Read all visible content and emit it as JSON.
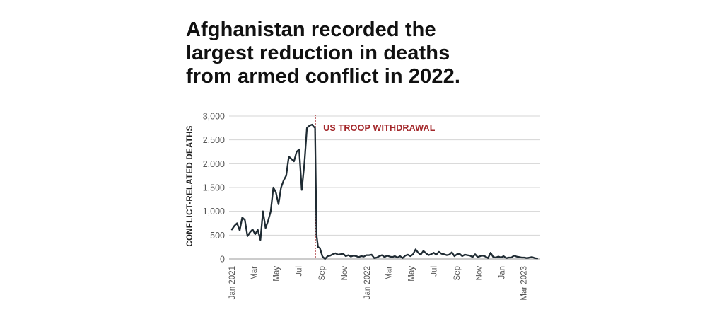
{
  "title_lines": [
    "Afghanistan recorded the",
    "largest reduction in deaths",
    "from armed conflict in 2022."
  ],
  "colors": {
    "line": "#1f2b33",
    "annotation": "#a3272a",
    "grid": "#d4d4d4",
    "text": "#111111"
  },
  "chart_data": {
    "type": "line",
    "title": "Afghanistan recorded the largest reduction in deaths from armed conflict in 2022.",
    "xlabel": "",
    "ylabel": "CONFLICT-RELATED DEATHS",
    "ylim": [
      0,
      3000
    ],
    "yticks": [
      0,
      500,
      1000,
      1500,
      2000,
      2500,
      3000
    ],
    "ytick_labels": [
      "0",
      "500",
      "1,000",
      "1,500",
      "2,000",
      "2,500",
      "3,000"
    ],
    "xlim": [
      "2021-01-01",
      "2023-04-15"
    ],
    "xticks": [
      {
        "date": "2021-01-01",
        "label": "Jan 2021"
      },
      {
        "date": "2021-03-01",
        "label": "Mar"
      },
      {
        "date": "2021-05-01",
        "label": "May"
      },
      {
        "date": "2021-07-01",
        "label": "Jul"
      },
      {
        "date": "2021-09-01",
        "label": "Sep"
      },
      {
        "date": "2021-11-01",
        "label": "Nov"
      },
      {
        "date": "2022-01-01",
        "label": "Jan 2022"
      },
      {
        "date": "2022-03-01",
        "label": "Mar"
      },
      {
        "date": "2022-05-01",
        "label": "May"
      },
      {
        "date": "2022-07-01",
        "label": "Jul"
      },
      {
        "date": "2022-09-01",
        "label": "Sep"
      },
      {
        "date": "2022-11-01",
        "label": "Nov"
      },
      {
        "date": "2023-01-01",
        "label": "Jan"
      },
      {
        "date": "2023-03-01",
        "label": "Mar 2023"
      }
    ],
    "grid": true,
    "annotation": {
      "date": "2021-08-15",
      "label": "US TROOP WITHDRAWAL"
    },
    "series": [
      {
        "x": [
          "2021-01-01",
          "2021-01-08",
          "2021-01-15",
          "2021-01-22",
          "2021-01-29",
          "2021-02-05",
          "2021-02-12",
          "2021-02-19",
          "2021-02-26",
          "2021-03-05",
          "2021-03-12",
          "2021-03-19",
          "2021-03-26",
          "2021-04-02",
          "2021-04-09",
          "2021-04-16",
          "2021-04-23",
          "2021-04-30",
          "2021-05-07",
          "2021-05-14",
          "2021-05-21",
          "2021-05-28",
          "2021-06-04",
          "2021-06-11",
          "2021-06-18",
          "2021-06-25",
          "2021-07-02",
          "2021-07-09",
          "2021-07-16",
          "2021-07-23",
          "2021-07-30",
          "2021-08-06",
          "2021-08-10",
          "2021-08-14",
          "2021-08-18",
          "2021-08-22",
          "2021-08-27",
          "2021-09-03",
          "2021-09-10",
          "2021-09-17",
          "2021-09-24",
          "2021-10-01",
          "2021-10-08",
          "2021-10-15",
          "2021-10-22",
          "2021-10-29",
          "2021-11-05",
          "2021-11-12",
          "2021-11-19",
          "2021-11-26",
          "2021-12-03",
          "2021-12-10",
          "2021-12-17",
          "2021-12-24",
          "2021-12-31",
          "2022-01-07",
          "2022-01-14",
          "2022-01-21",
          "2022-01-28",
          "2022-02-04",
          "2022-02-11",
          "2022-02-18",
          "2022-02-25",
          "2022-03-04",
          "2022-03-11",
          "2022-03-18",
          "2022-03-25",
          "2022-04-01",
          "2022-04-08",
          "2022-04-15",
          "2022-04-22",
          "2022-04-29",
          "2022-05-06",
          "2022-05-13",
          "2022-05-20",
          "2022-05-27",
          "2022-06-03",
          "2022-06-10",
          "2022-06-17",
          "2022-06-24",
          "2022-07-01",
          "2022-07-08",
          "2022-07-15",
          "2022-07-22",
          "2022-07-29",
          "2022-08-05",
          "2022-08-12",
          "2022-08-19",
          "2022-08-26",
          "2022-09-02",
          "2022-09-09",
          "2022-09-16",
          "2022-09-23",
          "2022-09-30",
          "2022-10-07",
          "2022-10-14",
          "2022-10-21",
          "2022-10-28",
          "2022-11-04",
          "2022-11-11",
          "2022-11-18",
          "2022-11-25",
          "2022-12-02",
          "2022-12-09",
          "2022-12-16",
          "2022-12-23",
          "2022-12-30",
          "2023-01-06",
          "2023-01-13",
          "2023-01-20",
          "2023-01-27",
          "2023-02-03",
          "2023-02-10",
          "2023-02-17",
          "2023-02-24",
          "2023-03-03",
          "2023-03-10",
          "2023-03-17",
          "2023-03-24",
          "2023-03-31",
          "2023-04-07"
        ],
        "y": [
          620,
          700,
          750,
          600,
          870,
          820,
          480,
          560,
          620,
          520,
          610,
          400,
          1000,
          650,
          800,
          1000,
          1500,
          1400,
          1150,
          1500,
          1650,
          1750,
          2150,
          2100,
          2050,
          2250,
          2300,
          1450,
          2000,
          2750,
          2800,
          2820,
          2780,
          2750,
          500,
          250,
          230,
          50,
          0,
          60,
          70,
          100,
          120,
          90,
          100,
          110,
          60,
          80,
          50,
          70,
          60,
          40,
          60,
          50,
          80,
          80,
          90,
          20,
          30,
          60,
          80,
          40,
          70,
          50,
          40,
          60,
          30,
          60,
          20,
          70,
          90,
          60,
          100,
          200,
          130,
          90,
          170,
          120,
          80,
          100,
          130,
          90,
          150,
          110,
          100,
          80,
          90,
          140,
          60,
          100,
          110,
          60,
          90,
          80,
          70,
          40,
          100,
          40,
          60,
          70,
          50,
          20,
          130,
          40,
          30,
          50,
          30,
          60,
          20,
          30,
          30,
          70,
          50,
          40,
          30,
          30,
          20,
          30,
          40,
          20,
          10
        ]
      }
    ]
  }
}
